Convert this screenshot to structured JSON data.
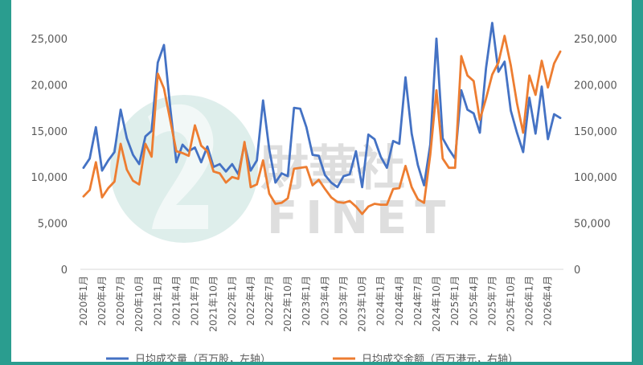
{
  "chart_data": {
    "type": "line",
    "x": [
      "2020年1月",
      "2020年2月",
      "2020年3月",
      "2020年4月",
      "2020年5月",
      "2020年6月",
      "2020年7月",
      "2020年8月",
      "2020年9月",
      "2020年10月",
      "2020年11月",
      "2020年12月",
      "2021年1月",
      "2021年2月",
      "2021年3月",
      "2021年4月",
      "2021年5月",
      "2021年6月",
      "2021年7月",
      "2021年8月",
      "2021年9月",
      "2021年10月",
      "2021年11月",
      "2021年12月",
      "2022年1月",
      "2022年2月",
      "2022年3月",
      "2022年4月",
      "2022年5月",
      "2022年6月",
      "2022年7月",
      "2022年8月",
      "2022年9月",
      "2022年10月",
      "2022年11月",
      "2022年12月",
      "2023年1月",
      "2023年2月",
      "2023年3月",
      "2023年4月",
      "2023年5月",
      "2023年6月",
      "2023年7月",
      "2023年8月",
      "2023年9月",
      "2023年10月",
      "2023年11月",
      "2023年12月",
      "2024年1月",
      "2024年2月",
      "2024年3月",
      "2024年4月",
      "2024年5月",
      "2024年6月",
      "2024年7月",
      "2024年8月",
      "2024年9月",
      "2024年10月",
      "2024年11月",
      "2024年12月",
      "2025年1月",
      "2025年2月",
      "2025年3月",
      "2025年4月",
      "2025年5月",
      "2025年6月",
      "2025年7月",
      "2025年8月",
      "2025年9月",
      "2025年10月",
      "2025年11月",
      "2025年12月",
      "2026年1月",
      "2026年2月",
      "2026年3月",
      "2026年4月",
      "2026年5月",
      "2026年6月"
    ],
    "x_tick_labels": [
      "2020年1月",
      "2020年4月",
      "2020年7月",
      "2020年10月",
      "2021年1月",
      "2021年4月",
      "2021年7月",
      "2021年10月",
      "2022年1月",
      "2022年4月",
      "2022年7月",
      "2022年10月",
      "2023年1月",
      "2023年4月",
      "2023年7月",
      "2023年10月",
      "2024年1月",
      "2024年4月",
      "2024年7月",
      "2024年10月",
      "2025年1月",
      "2025年4月",
      "2025年7月",
      "2025年10月",
      "2026年1月",
      "2026年4月"
    ],
    "left_ticks": [
      "0",
      "5,000",
      "10,000",
      "15,000",
      "20,000",
      "25,000"
    ],
    "right_ticks": [
      "0",
      "50,000",
      "100,000",
      "150,000",
      "200,000",
      "250,000"
    ],
    "ylim_left": [
      0,
      25000
    ],
    "ylim_right": [
      0,
      250000
    ],
    "grid": false,
    "series": [
      {
        "name": "日均成交量（百万股，左轴）",
        "axis": "left",
        "color": "#4472c4",
        "values": [
          11000,
          12000,
          15400,
          10700,
          11800,
          12700,
          17300,
          14200,
          12400,
          11400,
          14400,
          15000,
          22400,
          24300,
          17600,
          11600,
          13500,
          12800,
          13200,
          11600,
          13300,
          11100,
          11400,
          10600,
          11400,
          10300,
          13600,
          10700,
          11800,
          18300,
          13000,
          9400,
          10400,
          10100,
          17500,
          17400,
          15400,
          12400,
          12300,
          10200,
          9400,
          8900,
          10100,
          10300,
          12800,
          8900,
          14600,
          14100,
          12200,
          11000,
          13900,
          13600,
          20800,
          14700,
          11300,
          9100,
          13500,
          25000,
          14200,
          13000,
          12000,
          19400,
          17300,
          16900,
          14800,
          21800,
          26700,
          21400,
          22500,
          17200,
          14800,
          12700,
          18600,
          14700,
          19800,
          14100,
          16800,
          16400
        ]
      },
      {
        "name": "日均成交金额（百万港元，右轴）",
        "axis": "right",
        "color": "#ed7d31",
        "values": [
          79000,
          86000,
          116000,
          78000,
          88000,
          95000,
          136000,
          108000,
          96000,
          92000,
          136000,
          122000,
          212000,
          196000,
          162000,
          128000,
          126000,
          123000,
          156000,
          134000,
          128000,
          106000,
          104000,
          94000,
          100000,
          98000,
          138000,
          89000,
          92000,
          118000,
          82000,
          71000,
          72000,
          77000,
          109000,
          110000,
          111000,
          91000,
          97000,
          87000,
          78000,
          73000,
          72000,
          74000,
          68000,
          60000,
          68000,
          71000,
          70000,
          70000,
          87000,
          88000,
          112000,
          89000,
          76000,
          72000,
          124000,
          194000,
          120000,
          110000,
          110000,
          231000,
          210000,
          204000,
          162000,
          185000,
          211000,
          224000,
          253000,
          221000,
          180000,
          148000,
          210000,
          189000,
          226000,
          197000,
          223000,
          236000
        ]
      }
    ],
    "legend": "bottom"
  },
  "watermark": {
    "text": "財華社",
    "sub": "FINET"
  },
  "colors": {
    "frame": "#2a9d8f",
    "axis": "#d9d9d9",
    "tick_text": "#595959"
  }
}
